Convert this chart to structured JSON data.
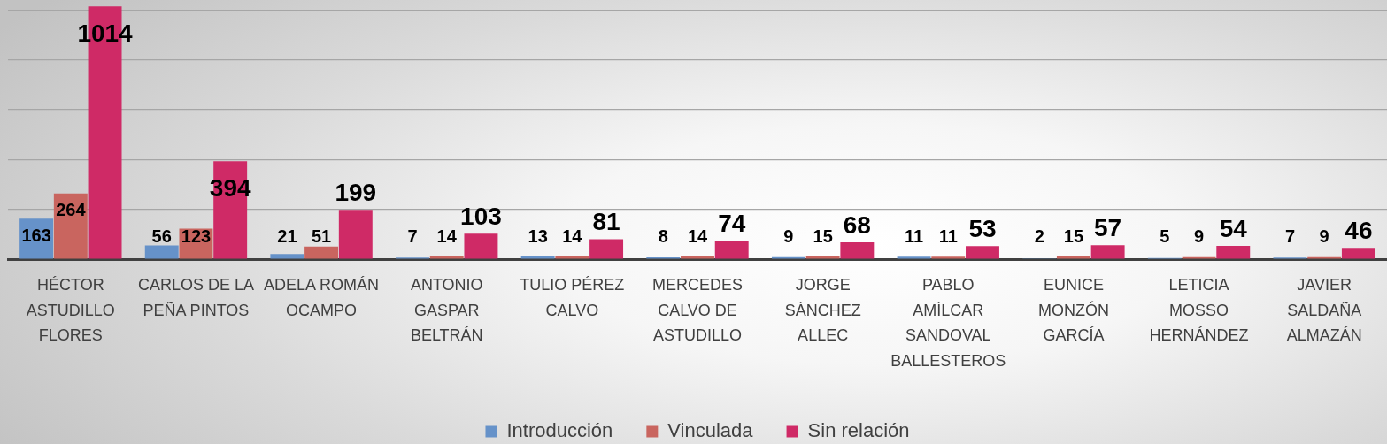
{
  "chart_data": {
    "type": "bar",
    "categories": [
      "HÉCTOR ASTUDILLO FLORES",
      "CARLOS DE LA PEÑA PINTOS",
      "ADELA ROMÁN OCAMPO",
      "ANTONIO GASPAR BELTRÁN",
      "TULIO PÉREZ CALVO",
      "MERCEDES CALVO DE ASTUDILLO",
      "JORGE SÁNCHEZ ALLEC",
      "PABLO AMÍLCAR SANDOVAL BALLESTEROS",
      "EUNICE MONZÓN GARCÍA",
      "LETICIA MOSSO HERNÁNDEZ",
      "JAVIER SALDAÑA ALMAZÁN"
    ],
    "series": [
      {
        "name": "Introducción",
        "color": "#6692c9",
        "values": [
          163,
          56,
          21,
          7,
          13,
          8,
          9,
          11,
          2,
          5,
          7
        ]
      },
      {
        "name": "Vinculada",
        "color": "#c9655f",
        "values": [
          264,
          123,
          51,
          14,
          14,
          14,
          15,
          11,
          15,
          9,
          9
        ]
      },
      {
        "name": "Sin relación",
        "color": "#cf2a66",
        "values": [
          1014,
          394,
          199,
          103,
          81,
          74,
          68,
          53,
          57,
          54,
          46
        ]
      }
    ],
    "ylim": [
      0,
      1040
    ],
    "yticks": [
      {
        "value": 0,
        "label": null
      },
      {
        "value": 200,
        "label": null
      },
      {
        "value": 400,
        "label": null
      },
      {
        "value": 600,
        "label": null
      },
      {
        "value": 800,
        "label": null
      },
      {
        "value": 1000,
        "label": null
      }
    ],
    "tick_labels": "x",
    "grid": "y",
    "legend": "bottom",
    "data_labels": true
  }
}
